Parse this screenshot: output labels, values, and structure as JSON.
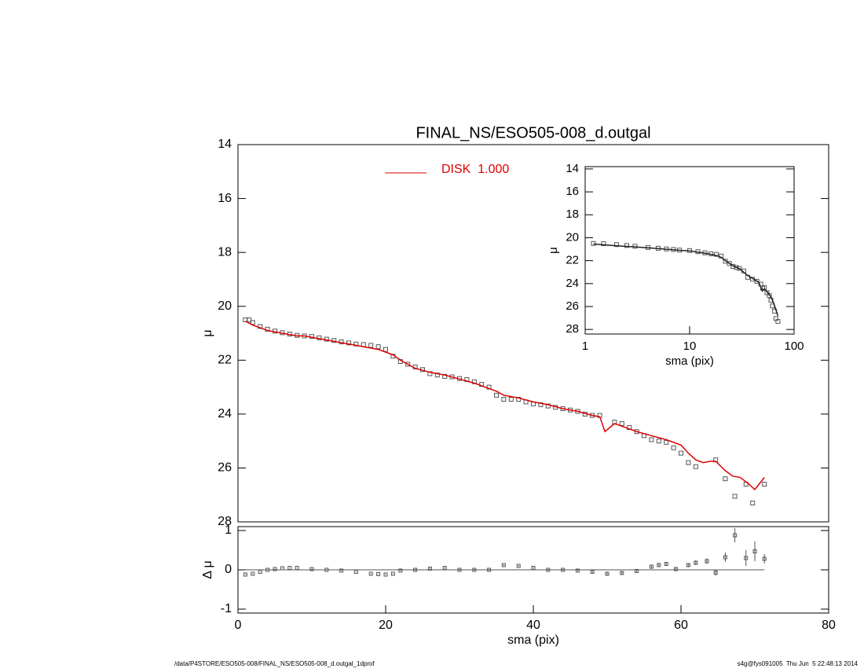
{
  "chart_data": [
    {
      "type": "scatter",
      "title": "FINAL_NS/ESO505-008_d.outgal",
      "ylabel": "μ",
      "xlim": [
        0,
        80
      ],
      "ylim": [
        14,
        28
      ],
      "yinverted": true,
      "yticks": [
        14,
        16,
        18,
        20,
        22,
        24,
        26,
        28
      ],
      "legend": "top-left",
      "series": [
        {
          "kind": "points",
          "color": "#555555",
          "x": [
            1,
            1.5,
            2,
            3,
            4,
            5,
            6,
            7,
            8,
            9,
            10,
            11,
            12,
            13,
            14,
            15,
            16,
            17,
            18,
            19,
            20,
            21,
            22,
            23,
            24,
            25,
            26,
            27,
            28,
            29,
            30,
            31,
            32,
            33,
            34,
            35,
            36,
            37,
            38,
            39,
            40,
            41,
            42,
            43,
            44,
            45,
            46,
            47,
            48,
            49,
            51,
            52,
            53,
            54,
            55,
            56,
            57,
            58,
            59,
            60,
            61,
            62,
            64.7,
            66,
            67.3,
            68.8,
            69.7,
            71.3
          ],
          "values": [
            20.5,
            20.5,
            20.6,
            20.75,
            20.85,
            20.92,
            20.98,
            21.03,
            21.08,
            21.1,
            21.12,
            21.17,
            21.22,
            21.27,
            21.32,
            21.36,
            21.4,
            21.42,
            21.45,
            21.5,
            21.6,
            21.85,
            22.05,
            22.15,
            22.25,
            22.35,
            22.5,
            22.55,
            22.6,
            22.62,
            22.68,
            22.72,
            22.8,
            22.9,
            23.0,
            23.3,
            23.45,
            23.45,
            23.45,
            23.55,
            23.62,
            23.65,
            23.7,
            23.75,
            23.8,
            23.85,
            23.9,
            24.0,
            24.05,
            24.05,
            24.3,
            24.35,
            24.5,
            24.65,
            24.8,
            24.95,
            25.0,
            25.05,
            25.25,
            25.45,
            25.8,
            25.95,
            25.7,
            26.4,
            27.05,
            26.6,
            27.3,
            26.6
          ]
        },
        {
          "kind": "line",
          "name": "DISK  1.000",
          "color": "#dd0000",
          "x": [
            1,
            2,
            3,
            4,
            5,
            6,
            7,
            8,
            9,
            10,
            12,
            14,
            16,
            18,
            19,
            20,
            21,
            22,
            24,
            26,
            28,
            30,
            32,
            34,
            35,
            36,
            38,
            40,
            42,
            44,
            46,
            48,
            49,
            49.7,
            51,
            52,
            54,
            56,
            58,
            60,
            61,
            62,
            63,
            64,
            64.7,
            66,
            67,
            68,
            69,
            70,
            71.3
          ],
          "values": [
            20.55,
            20.7,
            20.8,
            20.9,
            20.95,
            21.0,
            21.05,
            21.1,
            21.1,
            21.15,
            21.25,
            21.35,
            21.45,
            21.55,
            21.6,
            21.7,
            21.8,
            22.0,
            22.3,
            22.45,
            22.55,
            22.7,
            22.85,
            23.05,
            23.15,
            23.3,
            23.4,
            23.55,
            23.65,
            23.8,
            23.9,
            24.05,
            24.1,
            24.65,
            24.35,
            24.45,
            24.65,
            24.8,
            24.95,
            25.15,
            25.45,
            25.7,
            25.8,
            25.75,
            25.75,
            26.1,
            26.3,
            26.35,
            26.55,
            26.8,
            26.35
          ]
        }
      ]
    },
    {
      "type": "errorbar",
      "xlabel": "sma (pix)",
      "ylabel": "Δ μ",
      "xlim": [
        0,
        80
      ],
      "ylim": [
        -1.1,
        1.1
      ],
      "xticks": [
        0,
        20,
        40,
        60,
        80
      ],
      "yticks": [
        -1,
        0,
        1
      ],
      "color": "#555555",
      "x": [
        1,
        2,
        3,
        4,
        5,
        6,
        7,
        8,
        10,
        12,
        14,
        16,
        18,
        19,
        20,
        21,
        22,
        24,
        26,
        28,
        30,
        32,
        34,
        36,
        38,
        40,
        42,
        44,
        46,
        48,
        50,
        52,
        54,
        56,
        57,
        58,
        59.3,
        61,
        62,
        63.5,
        64.7,
        66,
        67.3,
        68.8,
        70,
        71.3
      ],
      "values": [
        -0.12,
        -0.1,
        -0.05,
        0.0,
        0.02,
        0.04,
        0.05,
        0.05,
        0.02,
        0.0,
        -0.02,
        -0.05,
        -0.1,
        -0.11,
        -0.12,
        -0.1,
        -0.02,
        0.0,
        0.03,
        0.05,
        0.0,
        0.0,
        0.0,
        0.12,
        0.1,
        0.05,
        0.0,
        0.0,
        -0.02,
        -0.05,
        -0.1,
        -0.08,
        -0.03,
        0.08,
        0.12,
        0.15,
        0.02,
        0.12,
        0.18,
        0.22,
        -0.07,
        0.32,
        0.88,
        0.3,
        0.47,
        0.28
      ],
      "errors": [
        0.01,
        0.01,
        0.01,
        0.01,
        0.01,
        0.01,
        0.01,
        0.01,
        0.01,
        0.01,
        0.01,
        0.01,
        0.01,
        0.01,
        0.01,
        0.01,
        0.01,
        0.02,
        0.02,
        0.02,
        0.02,
        0.02,
        0.02,
        0.02,
        0.02,
        0.02,
        0.02,
        0.02,
        0.02,
        0.03,
        0.03,
        0.03,
        0.03,
        0.03,
        0.03,
        0.04,
        0.04,
        0.05,
        0.06,
        0.07,
        0.08,
        0.12,
        0.18,
        0.2,
        0.25,
        0.12
      ]
    },
    {
      "type": "scatter",
      "xlabel": "sma (pix)",
      "ylabel": "μ",
      "xscale": "log",
      "xlim": [
        1,
        100
      ],
      "ylim": [
        13.8,
        28.4
      ],
      "yinverted": true,
      "xticks": [
        1,
        10,
        100
      ],
      "yticks": [
        14,
        16,
        18,
        20,
        22,
        24,
        26,
        28
      ],
      "series": [
        {
          "kind": "points",
          "color": "#555555",
          "x": [
            1.2,
            1.5,
            2,
            2.5,
            3,
            4,
            5,
            6,
            7,
            8,
            10,
            12,
            14,
            16,
            18,
            20,
            22,
            24,
            26,
            28,
            30,
            33,
            36,
            40,
            44,
            48,
            50,
            52,
            55,
            58,
            60,
            62,
            65,
            67,
            70
          ],
          "values": [
            20.5,
            20.52,
            20.6,
            20.68,
            20.75,
            20.85,
            20.92,
            20.98,
            21.03,
            21.08,
            21.12,
            21.22,
            21.32,
            21.4,
            21.45,
            21.6,
            22.05,
            22.25,
            22.5,
            22.6,
            22.68,
            22.9,
            23.45,
            23.62,
            23.8,
            24.05,
            24.4,
            24.35,
            24.8,
            25.05,
            25.45,
            25.95,
            26.4,
            27.05,
            27.3
          ]
        },
        {
          "kind": "line",
          "color": "#222222",
          "x": [
            1.2,
            2,
            3,
            5,
            8,
            10,
            15,
            18,
            20,
            22,
            26,
            30,
            36,
            40,
            46,
            49.7,
            52,
            56,
            60,
            64,
            67,
            70
          ],
          "values": [
            20.55,
            20.7,
            20.8,
            20.95,
            21.1,
            21.15,
            21.4,
            21.55,
            21.7,
            22.0,
            22.45,
            22.7,
            23.3,
            23.55,
            23.9,
            24.65,
            24.45,
            24.8,
            25.15,
            25.75,
            26.3,
            26.8
          ]
        }
      ]
    }
  ],
  "footer": {
    "path": "/data/P4STORE/ESO505-008/FINAL_NS/ESO505-008_d.outgal_1dprof",
    "stamp": "s4g@fys091005  Thu Jun  5 22:48:13 2014"
  }
}
